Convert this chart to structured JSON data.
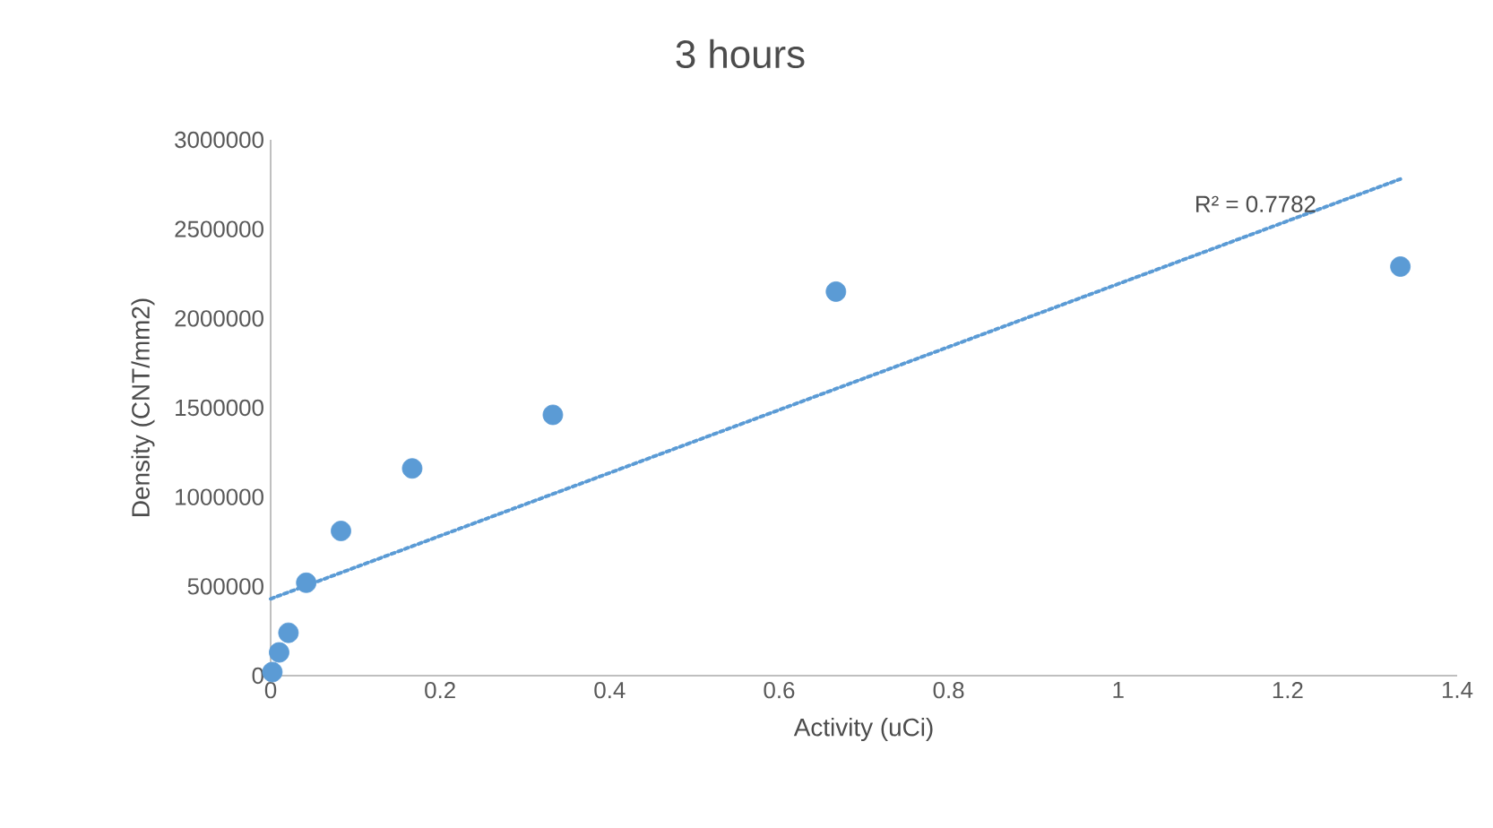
{
  "chart_data": {
    "type": "scatter",
    "title": "3 hours",
    "xlabel": "Activity (uCi)",
    "ylabel": "Density (CNT/mm2)",
    "xlim": [
      0,
      1.4
    ],
    "xticks": [
      0,
      0.2,
      0.4,
      0.6,
      0.8,
      1,
      1.2,
      1.4
    ],
    "ylim": [
      0,
      3000000
    ],
    "yticks": [
      0,
      500000,
      1000000,
      1500000,
      2000000,
      2500000,
      3000000
    ],
    "marker": "circle",
    "series": [
      {
        "color": "#5b9bd5",
        "x": [
          0.002,
          0.01,
          0.021,
          0.042,
          0.083,
          0.167,
          0.333,
          0.667,
          1.333
        ],
        "values": [
          20000,
          130000,
          240000,
          520000,
          810000,
          1160000,
          1460000,
          2150000,
          2290000
        ]
      },
      {
        "type": "line",
        "color": "#5b9bd5",
        "line_style": "dotted",
        "marker": "none",
        "x": [
          0,
          1.333
        ],
        "values": [
          430000,
          2780000
        ]
      }
    ],
    "annotations": [
      "R² = 0.7782"
    ]
  }
}
